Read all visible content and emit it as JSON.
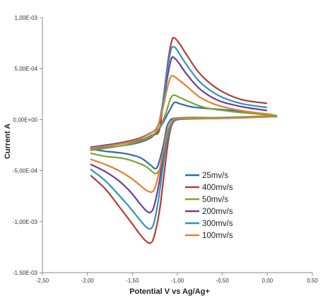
{
  "chart_data": {
    "type": "line",
    "title": "",
    "xlabel": "Potential V vs Ag/Ag+",
    "ylabel": "Current A",
    "xlim": [
      -2.5,
      0.5
    ],
    "ylim": [
      -0.0015,
      0.001
    ],
    "x_ticks": [
      -2.5,
      -2.0,
      -1.5,
      -1.0,
      -0.5,
      0.0,
      0.5
    ],
    "x_tick_labels": [
      "-2,50",
      "-2,00",
      "-1,50",
      "-1,00",
      "-0,50",
      "0,00",
      "0,50"
    ],
    "y_ticks": [
      0.001,
      0.0005,
      0.0,
      -0.0005,
      -0.001,
      -0.0015
    ],
    "y_tick_labels": [
      "1,00E-03",
      "5,00E-04",
      "0,00E+00",
      "-5,00E-04",
      "-1,00E-03",
      "-1,50E-03"
    ],
    "grid": false,
    "legend_position": "center-right",
    "series": [
      {
        "name": "25mv/s",
        "color": "#2E6BB0",
        "forward": [
          [
            -1.96,
            -0.00029
          ],
          [
            -1.8,
            -0.00031
          ],
          [
            -1.6,
            -0.00033
          ],
          [
            -1.45,
            -0.00036
          ],
          [
            -1.38,
            -0.00039
          ],
          [
            -1.32,
            -0.00043
          ],
          [
            -1.28,
            -0.00046
          ],
          [
            -1.25,
            -0.00048
          ],
          [
            -1.22,
            -0.00046
          ],
          [
            -1.18,
            -0.00034
          ],
          [
            -1.14,
            -0.00018
          ],
          [
            -1.12,
            -8e-05
          ],
          [
            -1.09,
            -2e-05
          ],
          [
            -1.05,
            1e-05
          ],
          [
            -0.9,
            2e-05
          ],
          [
            -0.5,
            2e-05
          ],
          [
            0.0,
            3e-05
          ],
          [
            0.1,
            4e-05
          ]
        ],
        "reverse": [
          [
            0.1,
            4e-05
          ],
          [
            -0.4,
            9e-05
          ],
          [
            -0.8,
            0.00012
          ],
          [
            -0.95,
            0.00015
          ],
          [
            -1.02,
            0.00017
          ],
          [
            -1.05,
            0.00015
          ],
          [
            -1.1,
            7e-05
          ],
          [
            -1.16,
            -3e-05
          ],
          [
            -1.22,
            -0.00011
          ],
          [
            -1.3,
            -0.00018
          ],
          [
            -1.45,
            -0.00023
          ],
          [
            -1.65,
            -0.00026
          ],
          [
            -1.96,
            -0.00029
          ]
        ]
      },
      {
        "name": "400mv/s",
        "color": "#B83A36",
        "forward": [
          [
            -1.96,
            -0.00055
          ],
          [
            -1.8,
            -0.00068
          ],
          [
            -1.65,
            -0.00085
          ],
          [
            -1.52,
            -0.001
          ],
          [
            -1.42,
            -0.00112
          ],
          [
            -1.35,
            -0.00119
          ],
          [
            -1.3,
            -0.00121
          ],
          [
            -1.26,
            -0.00115
          ],
          [
            -1.2,
            -0.0009
          ],
          [
            -1.15,
            -0.00055
          ],
          [
            -1.1,
            -0.0002
          ],
          [
            -1.06,
            -5e-05
          ],
          [
            -1.0,
            0.0
          ],
          [
            -0.8,
            1e-05
          ],
          [
            -0.4,
            2e-05
          ],
          [
            0.1,
            3e-05
          ]
        ],
        "reverse": [
          [
            -0.01,
            0.00016
          ],
          [
            -0.3,
            0.0002
          ],
          [
            -0.55,
            0.0003
          ],
          [
            -0.75,
            0.00045
          ],
          [
            -0.9,
            0.00064
          ],
          [
            -0.98,
            0.00075
          ],
          [
            -1.03,
            0.0008
          ],
          [
            -1.06,
            0.00078
          ],
          [
            -1.1,
            0.0006
          ],
          [
            -1.15,
            0.00025
          ],
          [
            -1.2,
            -0.0001
          ],
          [
            -1.28,
            -0.00015
          ],
          [
            -1.4,
            -0.0002
          ],
          [
            -1.6,
            -0.00023
          ],
          [
            -1.96,
            -0.00027
          ]
        ]
      },
      {
        "name": "50mv/s",
        "color": "#7EA23B",
        "forward": [
          [
            -1.96,
            -0.00033
          ],
          [
            -1.8,
            -0.00036
          ],
          [
            -1.6,
            -0.00038
          ],
          [
            -1.45,
            -0.00042
          ],
          [
            -1.35,
            -0.00046
          ],
          [
            -1.28,
            -0.00051
          ],
          [
            -1.24,
            -0.00053
          ],
          [
            -1.2,
            -0.00049
          ],
          [
            -1.16,
            -0.00035
          ],
          [
            -1.12,
            -0.00018
          ],
          [
            -1.08,
            -6e-05
          ],
          [
            -1.04,
            0.0
          ],
          [
            -0.9,
            2e-05
          ],
          [
            -0.5,
            2e-05
          ],
          [
            0.1,
            4e-05
          ]
        ],
        "reverse": [
          [
            0.1,
            4e-05
          ],
          [
            -0.4,
            8e-05
          ],
          [
            -0.7,
            0.00012
          ],
          [
            -0.88,
            0.00018
          ],
          [
            -0.98,
            0.00022
          ],
          [
            -1.04,
            0.00024
          ],
          [
            -1.08,
            0.0002
          ],
          [
            -1.13,
            6e-05
          ],
          [
            -1.2,
            -8e-05
          ],
          [
            -1.3,
            -0.00017
          ],
          [
            -1.45,
            -0.00022
          ],
          [
            -1.65,
            -0.00026
          ],
          [
            -1.96,
            -0.0003
          ]
        ]
      },
      {
        "name": "200mv/s",
        "color": "#6B3F96",
        "forward": [
          [
            -1.96,
            -0.00044
          ],
          [
            -1.8,
            -0.00051
          ],
          [
            -1.65,
            -0.0006
          ],
          [
            -1.52,
            -0.00071
          ],
          [
            -1.42,
            -0.00082
          ],
          [
            -1.35,
            -0.00089
          ],
          [
            -1.3,
            -0.00091
          ],
          [
            -1.26,
            -0.00085
          ],
          [
            -1.21,
            -0.00065
          ],
          [
            -1.16,
            -0.00038
          ],
          [
            -1.12,
            -0.00015
          ],
          [
            -1.07,
            -3e-05
          ],
          [
            -1.0,
            1e-05
          ],
          [
            -0.7,
            1e-05
          ],
          [
            -0.3,
            2e-05
          ],
          [
            0.1,
            3e-05
          ]
        ],
        "reverse": [
          [
            -0.01,
            9e-05
          ],
          [
            -0.3,
            0.00013
          ],
          [
            -0.55,
            0.00019
          ],
          [
            -0.75,
            0.0003
          ],
          [
            -0.9,
            0.00045
          ],
          [
            -0.98,
            0.00055
          ],
          [
            -1.04,
            0.00061
          ],
          [
            -1.07,
            0.00059
          ],
          [
            -1.11,
            0.00042
          ],
          [
            -1.16,
            0.00015
          ],
          [
            -1.22,
            -7e-05
          ],
          [
            -1.32,
            -0.00014
          ],
          [
            -1.45,
            -0.00019
          ],
          [
            -1.65,
            -0.00023
          ],
          [
            -1.96,
            -0.00027
          ]
        ]
      },
      {
        "name": "300mv/s",
        "color": "#2E95B8",
        "forward": [
          [
            -1.96,
            -0.00049
          ],
          [
            -1.8,
            -0.0006
          ],
          [
            -1.65,
            -0.00074
          ],
          [
            -1.52,
            -0.00087
          ],
          [
            -1.42,
            -0.00098
          ],
          [
            -1.35,
            -0.00105
          ],
          [
            -1.3,
            -0.00107
          ],
          [
            -1.26,
            -0.00101
          ],
          [
            -1.21,
            -0.00078
          ],
          [
            -1.16,
            -0.00046
          ],
          [
            -1.11,
            -0.00018
          ],
          [
            -1.06,
            -4e-05
          ],
          [
            -1.0,
            0.0
          ],
          [
            -0.7,
            1e-05
          ],
          [
            -0.3,
            2e-05
          ],
          [
            0.1,
            3e-05
          ]
        ],
        "reverse": [
          [
            -0.01,
            0.00012
          ],
          [
            -0.3,
            0.00016
          ],
          [
            -0.55,
            0.00024
          ],
          [
            -0.75,
            0.00037
          ],
          [
            -0.9,
            0.00054
          ],
          [
            -0.98,
            0.00065
          ],
          [
            -1.03,
            0.00071
          ],
          [
            -1.07,
            0.00069
          ],
          [
            -1.11,
            0.0005
          ],
          [
            -1.16,
            0.00018
          ],
          [
            -1.22,
            -7e-05
          ],
          [
            -1.32,
            -0.00014
          ],
          [
            -1.45,
            -0.0002
          ],
          [
            -1.65,
            -0.00024
          ],
          [
            -1.96,
            -0.00028
          ]
        ]
      },
      {
        "name": "100mv/s",
        "color": "#E0822F",
        "forward": [
          [
            -1.96,
            -0.00039
          ],
          [
            -1.8,
            -0.00044
          ],
          [
            -1.65,
            -0.0005
          ],
          [
            -1.52,
            -0.00057
          ],
          [
            -1.42,
            -0.00064
          ],
          [
            -1.35,
            -0.00069
          ],
          [
            -1.29,
            -0.00071
          ],
          [
            -1.25,
            -0.00067
          ],
          [
            -1.2,
            -0.0005
          ],
          [
            -1.15,
            -0.00028
          ],
          [
            -1.11,
            -0.00011
          ],
          [
            -1.06,
            -2e-05
          ],
          [
            -1.0,
            1e-05
          ],
          [
            -0.6,
            1e-05
          ],
          [
            -0.2,
            2e-05
          ],
          [
            0.1,
            3e-05
          ]
        ],
        "reverse": [
          [
            0.05,
            5e-05
          ],
          [
            -0.3,
            9e-05
          ],
          [
            -0.55,
            0.00014
          ],
          [
            -0.75,
            0.00022
          ],
          [
            -0.9,
            0.00033
          ],
          [
            -1.0,
            0.0004
          ],
          [
            -1.05,
            0.00043
          ],
          [
            -1.08,
            0.00041
          ],
          [
            -1.12,
            0.00028
          ],
          [
            -1.17,
            8e-05
          ],
          [
            -1.23,
            -8e-05
          ],
          [
            -1.33,
            -0.00015
          ],
          [
            -1.45,
            -0.0002
          ],
          [
            -1.65,
            -0.00024
          ],
          [
            -1.96,
            -0.00028
          ]
        ]
      }
    ]
  }
}
